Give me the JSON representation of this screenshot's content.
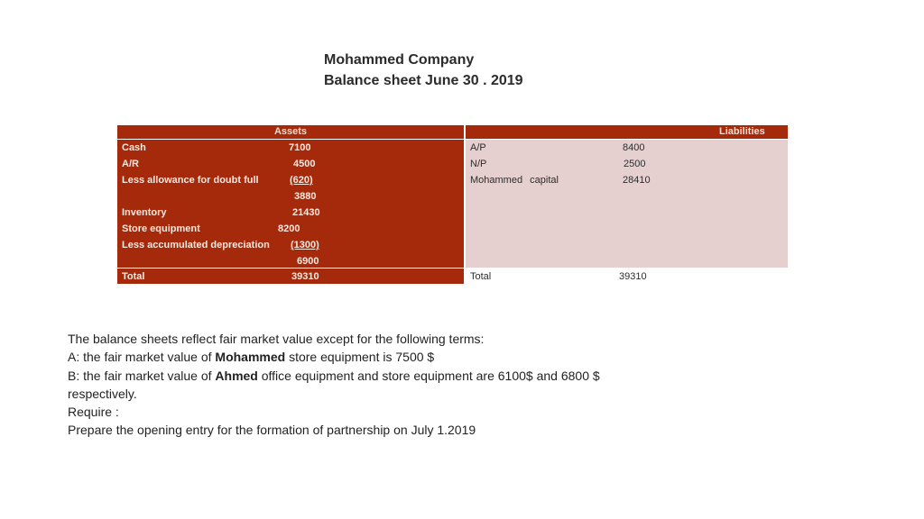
{
  "header": {
    "company": "Mohammed Company",
    "subtitle": "Balance sheet June 30 . 2019"
  },
  "assets": {
    "heading": "Assets",
    "rows": [
      {
        "label": "Cash",
        "value": "7100"
      },
      {
        "label": "A/R",
        "value": "4500"
      },
      {
        "label": "Less allowance for doubt full",
        "value": "(620)"
      },
      {
        "label": "",
        "value": "3880"
      },
      {
        "label": "Inventory",
        "value": "21430"
      },
      {
        "label": "Store equipment",
        "value": "8200"
      },
      {
        "label": "Less accumulated depreciation",
        "value": "(1300)"
      },
      {
        "label": "",
        "value": "6900"
      }
    ],
    "total_label": "Total",
    "total_value": "39310"
  },
  "liabilities": {
    "heading": "Liabilities",
    "rows": [
      {
        "label": "A/P",
        "value": "8400"
      },
      {
        "label": "N/P",
        "value": "2500"
      },
      {
        "label": "Mohammed",
        "label2": "capital",
        "value": "28410"
      }
    ],
    "total_label": "Total",
    "total_value": "39310"
  },
  "notes": {
    "line1": "The balance sheets reflect fair market value except for the following terms:",
    "line2_pre": "A: the fair market value of ",
    "line2_bold": "Mohammed",
    "line2_post": " store equipment is 7500 $",
    "line3_pre": "B: the fair market value of ",
    "line3_bold": "Ahmed",
    "line3_post": " office equipment and store equipment are 6100$ and 6800 $",
    "line4": "respectively.",
    "line5": "Require :",
    "line6": "Prepare the opening entry for the formation of partnership on July 1.2019"
  }
}
